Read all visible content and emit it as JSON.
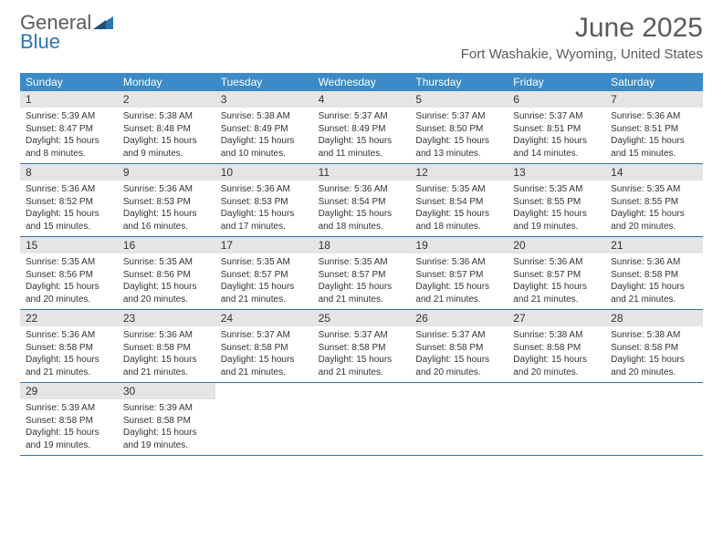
{
  "logo": {
    "text1": "General",
    "text2": "Blue"
  },
  "title": "June 2025",
  "location": "Fort Washakie, Wyoming, United States",
  "weekdays": [
    "Sunday",
    "Monday",
    "Tuesday",
    "Wednesday",
    "Thursday",
    "Friday",
    "Saturday"
  ],
  "colors": {
    "header_band": "#3b8bc8",
    "daynum_bg": "#e5e5e5",
    "row_border": "#2e75b6",
    "text": "#333333",
    "logo_gray": "#5a5a5a",
    "logo_blue": "#2e75b6"
  },
  "weeks": [
    [
      {
        "n": "1",
        "sr": "5:39 AM",
        "ss": "8:47 PM",
        "dlh": "15",
        "dlm": "8"
      },
      {
        "n": "2",
        "sr": "5:38 AM",
        "ss": "8:48 PM",
        "dlh": "15",
        "dlm": "9"
      },
      {
        "n": "3",
        "sr": "5:38 AM",
        "ss": "8:49 PM",
        "dlh": "15",
        "dlm": "10"
      },
      {
        "n": "4",
        "sr": "5:37 AM",
        "ss": "8:49 PM",
        "dlh": "15",
        "dlm": "11"
      },
      {
        "n": "5",
        "sr": "5:37 AM",
        "ss": "8:50 PM",
        "dlh": "15",
        "dlm": "13"
      },
      {
        "n": "6",
        "sr": "5:37 AM",
        "ss": "8:51 PM",
        "dlh": "15",
        "dlm": "14"
      },
      {
        "n": "7",
        "sr": "5:36 AM",
        "ss": "8:51 PM",
        "dlh": "15",
        "dlm": "15"
      }
    ],
    [
      {
        "n": "8",
        "sr": "5:36 AM",
        "ss": "8:52 PM",
        "dlh": "15",
        "dlm": "15"
      },
      {
        "n": "9",
        "sr": "5:36 AM",
        "ss": "8:53 PM",
        "dlh": "15",
        "dlm": "16"
      },
      {
        "n": "10",
        "sr": "5:36 AM",
        "ss": "8:53 PM",
        "dlh": "15",
        "dlm": "17"
      },
      {
        "n": "11",
        "sr": "5:36 AM",
        "ss": "8:54 PM",
        "dlh": "15",
        "dlm": "18"
      },
      {
        "n": "12",
        "sr": "5:35 AM",
        "ss": "8:54 PM",
        "dlh": "15",
        "dlm": "18"
      },
      {
        "n": "13",
        "sr": "5:35 AM",
        "ss": "8:55 PM",
        "dlh": "15",
        "dlm": "19"
      },
      {
        "n": "14",
        "sr": "5:35 AM",
        "ss": "8:55 PM",
        "dlh": "15",
        "dlm": "20"
      }
    ],
    [
      {
        "n": "15",
        "sr": "5:35 AM",
        "ss": "8:56 PM",
        "dlh": "15",
        "dlm": "20"
      },
      {
        "n": "16",
        "sr": "5:35 AM",
        "ss": "8:56 PM",
        "dlh": "15",
        "dlm": "20"
      },
      {
        "n": "17",
        "sr": "5:35 AM",
        "ss": "8:57 PM",
        "dlh": "15",
        "dlm": "21"
      },
      {
        "n": "18",
        "sr": "5:35 AM",
        "ss": "8:57 PM",
        "dlh": "15",
        "dlm": "21"
      },
      {
        "n": "19",
        "sr": "5:36 AM",
        "ss": "8:57 PM",
        "dlh": "15",
        "dlm": "21"
      },
      {
        "n": "20",
        "sr": "5:36 AM",
        "ss": "8:57 PM",
        "dlh": "15",
        "dlm": "21"
      },
      {
        "n": "21",
        "sr": "5:36 AM",
        "ss": "8:58 PM",
        "dlh": "15",
        "dlm": "21"
      }
    ],
    [
      {
        "n": "22",
        "sr": "5:36 AM",
        "ss": "8:58 PM",
        "dlh": "15",
        "dlm": "21"
      },
      {
        "n": "23",
        "sr": "5:36 AM",
        "ss": "8:58 PM",
        "dlh": "15",
        "dlm": "21"
      },
      {
        "n": "24",
        "sr": "5:37 AM",
        "ss": "8:58 PM",
        "dlh": "15",
        "dlm": "21"
      },
      {
        "n": "25",
        "sr": "5:37 AM",
        "ss": "8:58 PM",
        "dlh": "15",
        "dlm": "21"
      },
      {
        "n": "26",
        "sr": "5:37 AM",
        "ss": "8:58 PM",
        "dlh": "15",
        "dlm": "20"
      },
      {
        "n": "27",
        "sr": "5:38 AM",
        "ss": "8:58 PM",
        "dlh": "15",
        "dlm": "20"
      },
      {
        "n": "28",
        "sr": "5:38 AM",
        "ss": "8:58 PM",
        "dlh": "15",
        "dlm": "20"
      }
    ],
    [
      {
        "n": "29",
        "sr": "5:39 AM",
        "ss": "8:58 PM",
        "dlh": "15",
        "dlm": "19"
      },
      {
        "n": "30",
        "sr": "5:39 AM",
        "ss": "8:58 PM",
        "dlh": "15",
        "dlm": "19"
      },
      null,
      null,
      null,
      null,
      null
    ]
  ]
}
